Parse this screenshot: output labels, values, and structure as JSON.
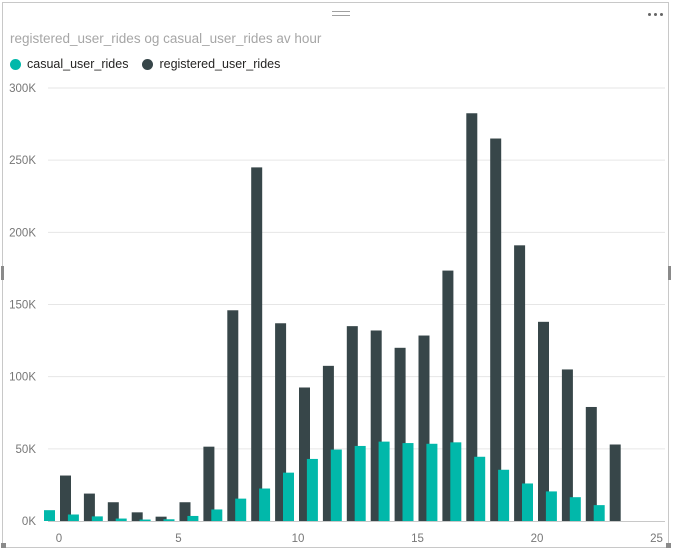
{
  "visual": {
    "title": "registered_user_rides og casual_user_rides av hour",
    "focus_grip_icon": "drag-grip-icon",
    "more_options_icon": "more-options-icon"
  },
  "colors": {
    "casual": "#01b8aa",
    "registered": "#374649",
    "grid": "#e6e6e6",
    "axis_text": "#777777"
  },
  "chart_data": {
    "type": "bar",
    "x": [
      0,
      1,
      2,
      3,
      4,
      5,
      6,
      7,
      8,
      9,
      10,
      11,
      12,
      13,
      14,
      15,
      16,
      17,
      18,
      19,
      20,
      21,
      22,
      23
    ],
    "series": [
      {
        "name": "casual_user_rides",
        "values": [
          7500,
          4500,
          3200,
          1700,
          1000,
          1200,
          3500,
          8000,
          15500,
          22500,
          33500,
          43000,
          49500,
          52000,
          55000,
          54000,
          53500,
          54500,
          44500,
          35500,
          26000,
          20500,
          16500,
          11000
        ]
      },
      {
        "name": "registered_user_rides",
        "values": [
          31500,
          19000,
          13000,
          6000,
          3000,
          13000,
          51500,
          146000,
          245000,
          137000,
          92500,
          107500,
          135000,
          132000,
          120000,
          128500,
          173500,
          282500,
          265000,
          191000,
          138000,
          105000,
          79000,
          53000
        ]
      }
    ],
    "xlim": [
      -1,
      25
    ],
    "ylim": [
      0,
      300000
    ],
    "xticks": [
      {
        "value": 0,
        "label": "0"
      },
      {
        "value": 5,
        "label": "5"
      },
      {
        "value": 10,
        "label": "10"
      },
      {
        "value": 15,
        "label": "15"
      },
      {
        "value": 20,
        "label": "20"
      },
      {
        "value": 25,
        "label": "25"
      }
    ],
    "yticks": [
      {
        "value": 0,
        "label": "0K"
      },
      {
        "value": 50000,
        "label": "50K"
      },
      {
        "value": 100000,
        "label": "100K"
      },
      {
        "value": 150000,
        "label": "150K"
      },
      {
        "value": 200000,
        "label": "200K"
      },
      {
        "value": 250000,
        "label": "250K"
      },
      {
        "value": 300000,
        "label": "300K"
      }
    ],
    "grid": true,
    "legend_position": "top-left",
    "title": "registered_user_rides og casual_user_rides av hour",
    "xlabel": "",
    "ylabel": ""
  }
}
